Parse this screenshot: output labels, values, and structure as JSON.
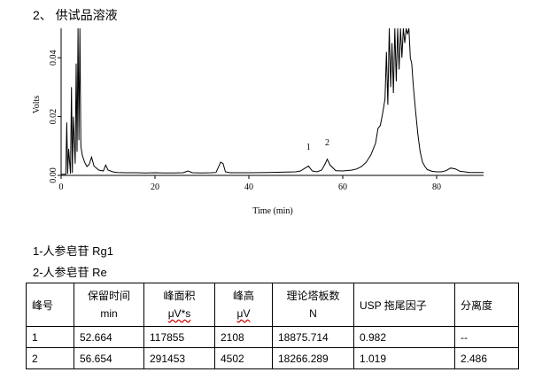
{
  "heading": "2、 供试品溶液",
  "chart_data": {
    "type": "line",
    "xlabel": "Time (min)",
    "ylabel": "Volts",
    "xlim": [
      0,
      90
    ],
    "ylim": [
      0,
      0.05
    ],
    "x_ticks": [
      0,
      20,
      40,
      60,
      80
    ],
    "x_tick_labels": [
      "0",
      "20",
      "40",
      "60",
      "80"
    ],
    "y_ticks": [
      0.0,
      0.02,
      0.04
    ],
    "y_tick_labels": [
      "0.00",
      "0.02",
      "0.04"
    ],
    "grid": false,
    "annotations": [
      {
        "text": "1",
        "x": 52.7,
        "y": 0.0078
      },
      {
        "text": "2",
        "x": 56.7,
        "y": 0.0093
      }
    ],
    "series": [
      {
        "x": [
          0,
          1,
          1.2,
          1.4,
          1.6,
          2,
          2.2,
          2.4,
          2.6,
          3,
          3.2,
          3.4,
          3.6,
          3.8,
          4,
          4.2,
          4.5,
          5,
          5.5,
          6,
          6.5,
          7,
          8,
          9,
          9.5,
          10,
          11,
          12,
          14,
          16,
          18,
          20,
          22,
          24,
          26,
          27,
          28,
          30,
          32,
          33,
          34,
          34.5,
          35,
          36,
          38,
          40,
          44,
          48,
          50,
          51,
          52,
          52.7,
          53.5,
          54.5,
          55.5,
          56.2,
          56.7,
          57.3,
          58.5,
          60,
          62,
          63,
          64,
          65,
          66,
          67,
          67.5,
          68,
          68.5,
          69,
          69.3,
          69.6,
          69.9,
          70.2,
          70.5,
          70.8,
          71.1,
          71.4,
          71.7,
          72,
          72.3,
          72.6,
          72.9,
          73.2,
          73.5,
          73.8,
          74.1,
          74.4,
          74.7,
          75,
          75.5,
          76,
          76.5,
          77,
          77.5,
          78,
          79,
          80,
          81,
          82,
          83,
          84,
          85,
          86,
          87,
          88,
          89,
          90
        ],
        "y": [
          0.0004,
          0.0004,
          0.018,
          0.0005,
          0.009,
          0.0006,
          0.03,
          0.0008,
          0.02,
          0.004,
          0.038,
          0.008,
          0.055,
          0.012,
          0.06,
          0.01,
          0.007,
          0.0045,
          0.003,
          0.0038,
          0.0062,
          0.0032,
          0.0018,
          0.0015,
          0.0035,
          0.0018,
          0.0012,
          0.001,
          0.0009,
          0.0009,
          0.0008,
          0.0009,
          0.0008,
          0.0008,
          0.0009,
          0.0015,
          0.0009,
          0.0008,
          0.0009,
          0.001,
          0.0045,
          0.004,
          0.0012,
          0.0009,
          0.0009,
          0.0009,
          0.001,
          0.0011,
          0.0012,
          0.0015,
          0.0025,
          0.0032,
          0.0015,
          0.0012,
          0.0018,
          0.0038,
          0.0055,
          0.0035,
          0.0016,
          0.0015,
          0.0018,
          0.0022,
          0.003,
          0.0045,
          0.007,
          0.011,
          0.016,
          0.017,
          0.021,
          0.026,
          0.042,
          0.024,
          0.055,
          0.03,
          0.045,
          0.028,
          0.06,
          0.032,
          0.05,
          0.036,
          0.055,
          0.04,
          0.065,
          0.045,
          0.06,
          0.048,
          0.052,
          0.04,
          0.038,
          0.031,
          0.022,
          0.014,
          0.008,
          0.0045,
          0.003,
          0.002,
          0.0014,
          0.0012,
          0.0012,
          0.0016,
          0.0025,
          0.0022,
          0.0014,
          0.0012,
          0.001,
          0.001,
          0.001,
          0.001
        ]
      }
    ]
  },
  "legend": {
    "line1": "1-人参皂苷 Rg1",
    "line2": "2-人参皂苷 Re"
  },
  "table": {
    "headers": [
      {
        "line1": "峰号",
        "line2": ""
      },
      {
        "line1": "保留时间",
        "line2": "min"
      },
      {
        "line1": "峰面积",
        "line2": "μV*s"
      },
      {
        "line1": "峰高",
        "line2": "μV"
      },
      {
        "line1": "理论塔板数",
        "line2": "N"
      },
      {
        "line1": "USP 拖尾因子",
        "line2": ""
      },
      {
        "line1": "分离度",
        "line2": ""
      }
    ],
    "rows": [
      [
        "1",
        "52.664",
        "117855",
        "2108",
        "18875.714",
        "0.982",
        "--"
      ],
      [
        "2",
        "56.654",
        "291453",
        "4502",
        "18266.289",
        "1.019",
        "2.486"
      ]
    ]
  }
}
